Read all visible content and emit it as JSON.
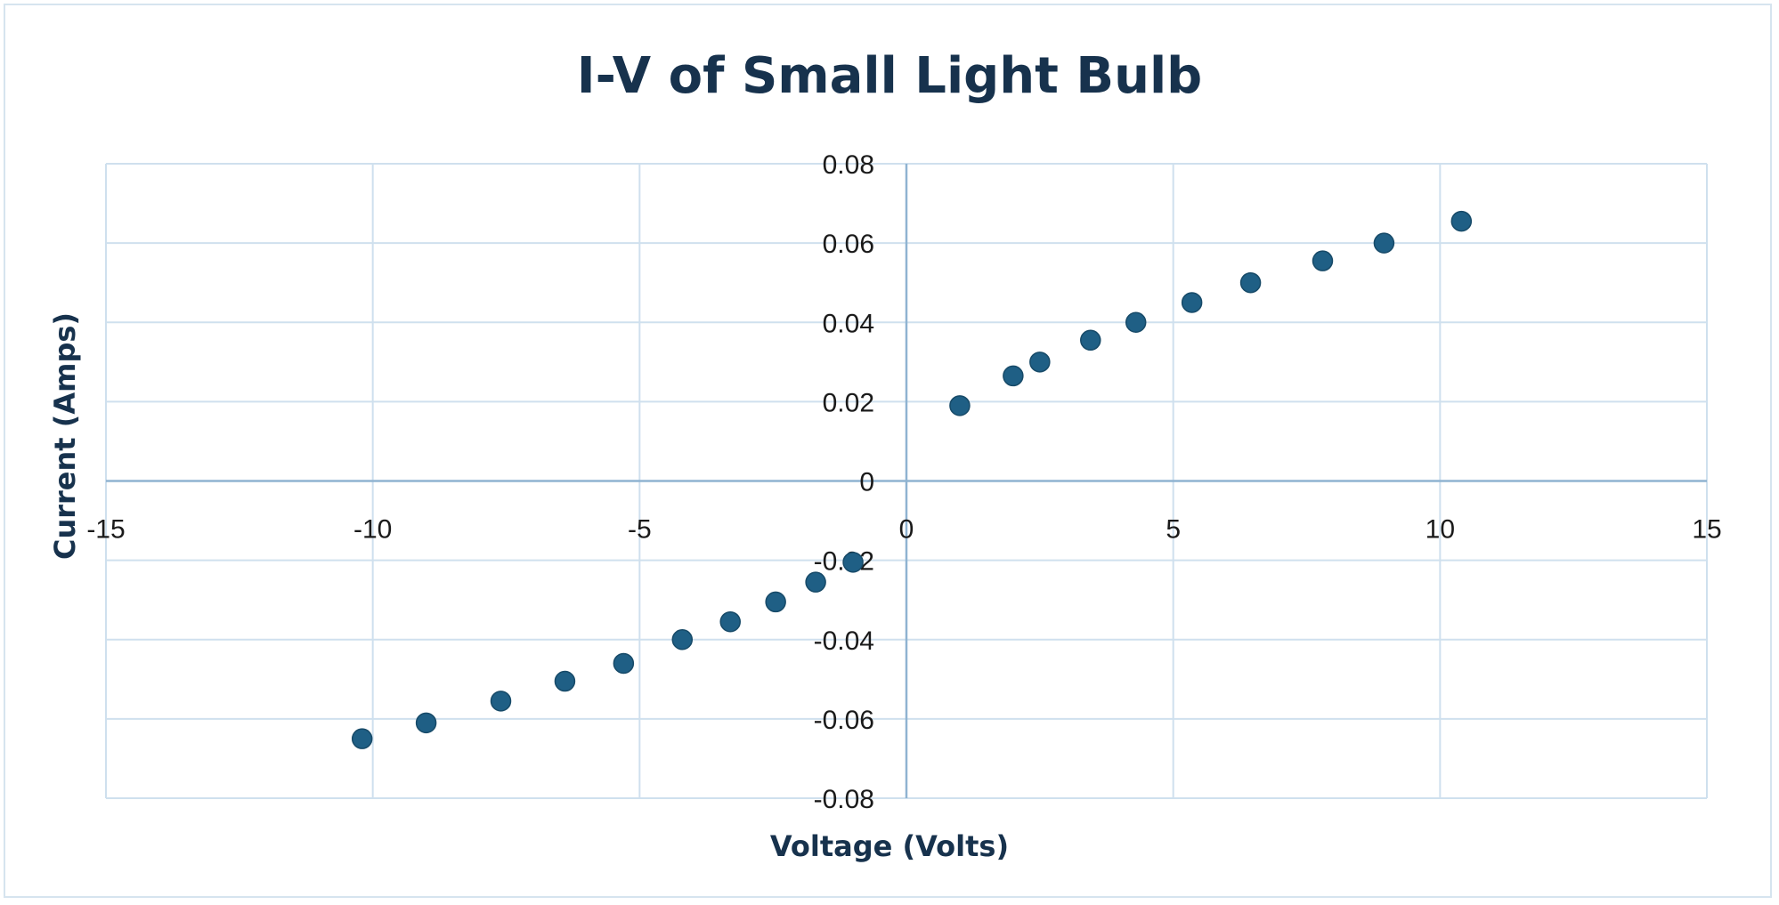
{
  "chart_data": {
    "type": "scatter",
    "title": "I-V of Small Light Bulb",
    "xlabel": "Voltage (Volts)",
    "ylabel": "Current (Amps)",
    "xlim": [
      -15,
      15
    ],
    "ylim": [
      -0.08,
      0.08
    ],
    "x_ticks": [
      -15,
      -10,
      -5,
      0,
      5,
      10,
      15
    ],
    "y_ticks": [
      0.08,
      0.06,
      0.04,
      0.02,
      0,
      -0.02,
      -0.04,
      -0.06,
      -0.08
    ],
    "x_tick_labels": [
      "-15",
      "-10",
      "-5",
      "0",
      "5",
      "10",
      "15"
    ],
    "y_tick_labels": [
      "0.08",
      "0.06",
      "0.04",
      "0.02",
      "0",
      "-0.02",
      "-0.04",
      "-0.06",
      "-0.08"
    ],
    "grid": true,
    "colors": {
      "marker": "#1f5f85",
      "grid": "#cfe0ee",
      "axis": "#8fb3d1",
      "title": "#17324d"
    },
    "points": [
      {
        "x": 1.0,
        "y": 0.019
      },
      {
        "x": 2.0,
        "y": 0.0265
      },
      {
        "x": 2.5,
        "y": 0.03
      },
      {
        "x": 3.45,
        "y": 0.0355
      },
      {
        "x": 4.3,
        "y": 0.04
      },
      {
        "x": 5.35,
        "y": 0.045
      },
      {
        "x": 6.45,
        "y": 0.05
      },
      {
        "x": 7.8,
        "y": 0.0555
      },
      {
        "x": 8.95,
        "y": 0.06
      },
      {
        "x": 10.4,
        "y": 0.0655
      },
      {
        "x": -1.0,
        "y": -0.0205
      },
      {
        "x": -1.7,
        "y": -0.0255
      },
      {
        "x": -2.45,
        "y": -0.0305
      },
      {
        "x": -3.3,
        "y": -0.0355
      },
      {
        "x": -4.2,
        "y": -0.04
      },
      {
        "x": -5.3,
        "y": -0.046
      },
      {
        "x": -6.4,
        "y": -0.0505
      },
      {
        "x": -7.6,
        "y": -0.0555
      },
      {
        "x": -9.0,
        "y": -0.061
      },
      {
        "x": -10.2,
        "y": -0.065
      }
    ]
  }
}
